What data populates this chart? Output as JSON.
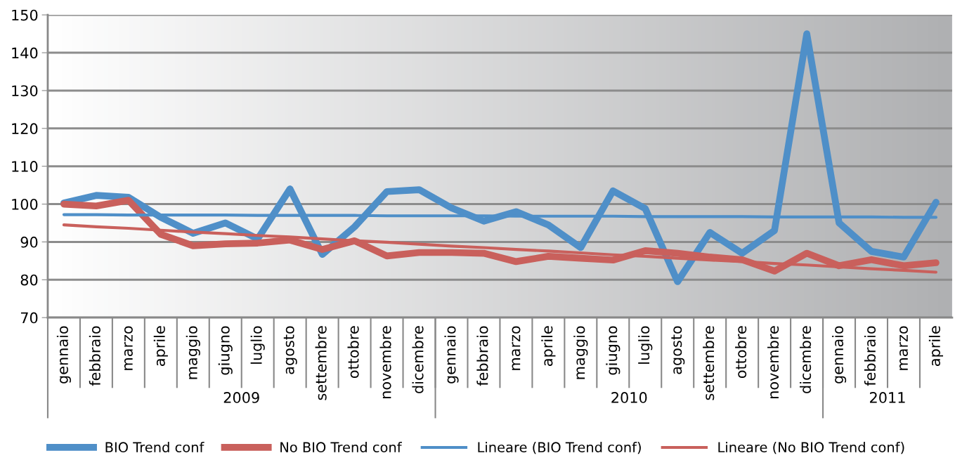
{
  "chart_data": {
    "type": "line",
    "categories": [
      "gennaio",
      "febbraio",
      "marzo",
      "aprile",
      "maggio",
      "giugno",
      "luglio",
      "agosto",
      "settembre",
      "ottobre",
      "novembre",
      "dicembre",
      "gennaio",
      "febbraio",
      "marzo",
      "aprile",
      "maggio",
      "giugno",
      "luglio",
      "agosto",
      "settembre",
      "ottobre",
      "novembre",
      "dicembre",
      "gennaio",
      "febbraio",
      "marzo",
      "aprile"
    ],
    "annotations": [
      "2009",
      "2010",
      "2011"
    ],
    "series": [
      {
        "name": "BIO Trend conf",
        "color": "#4f8fc8",
        "values": [
          100.3,
          102.3,
          101.8,
          96.5,
          92.3,
          95,
          90.8,
          104,
          86.7,
          94,
          103.3,
          103.8,
          99,
          95.5,
          98,
          94.5,
          88.5,
          103.5,
          98.8,
          79.5,
          92.5,
          87,
          93,
          145,
          95,
          87.5,
          86,
          100.5
        ]
      },
      {
        "name": "No BIO Trend conf",
        "color": "#c9605c",
        "values": [
          100,
          99.5,
          101,
          92,
          89,
          89.5,
          89.7,
          90.5,
          88,
          90.3,
          86.3,
          87.2,
          87.2,
          87,
          84.8,
          86.2,
          85.7,
          85.2,
          87.7,
          87,
          86,
          85.3,
          82.3,
          87,
          83.7,
          85.3,
          83.7,
          84.5
        ]
      },
      {
        "name": "Lineare (BIO Trend conf)",
        "color": "#4f8fc8",
        "values": [
          97.2,
          97.2,
          97.1,
          97.1,
          97.1,
          97.1,
          97.0,
          97.0,
          97.0,
          97.0,
          96.9,
          96.9,
          96.9,
          96.9,
          96.8,
          96.8,
          96.8,
          96.8,
          96.7,
          96.7,
          96.7,
          96.7,
          96.6,
          96.6,
          96.6,
          96.6,
          96.5,
          96.5
        ]
      },
      {
        "name": "Lineare (No BIO Trend conf)",
        "color": "#c9605c",
        "values": [
          94.5,
          94.0,
          93.6,
          93.1,
          92.6,
          92.2,
          91.7,
          91.3,
          90.8,
          90.3,
          89.9,
          89.4,
          88.9,
          88.5,
          88.0,
          87.6,
          87.1,
          86.6,
          86.2,
          85.7,
          85.2,
          84.8,
          84.3,
          83.9,
          83.4,
          82.9,
          82.5,
          82.0
        ]
      }
    ],
    "ylim": [
      70,
      150
    ],
    "yticks": [
      70,
      80,
      90,
      100,
      110,
      120,
      130,
      140,
      150
    ],
    "grid": "y",
    "legend": "bottom",
    "marker": "none",
    "line_style": "solid"
  }
}
